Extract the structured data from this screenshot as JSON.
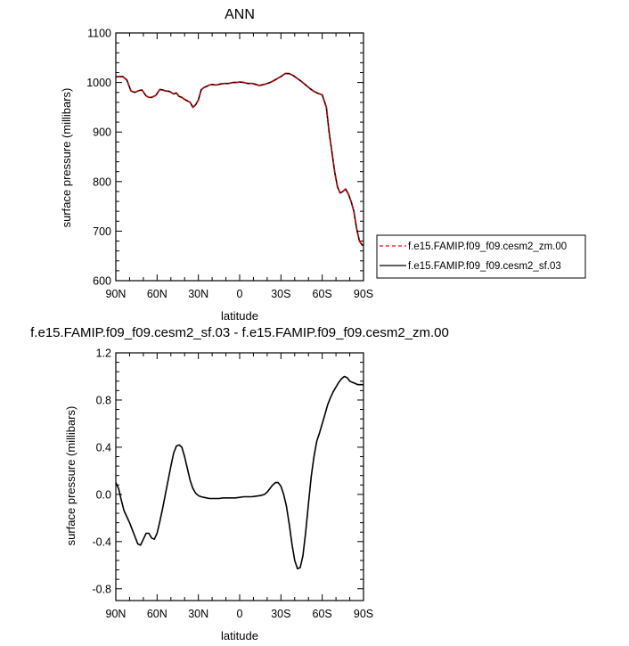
{
  "chart_data": [
    {
      "type": "line",
      "title": "ANN",
      "xlabel": "latitude",
      "ylabel": "surface pressure (millibars)",
      "xlim": [
        -90,
        90
      ],
      "ylim": [
        600,
        1100
      ],
      "x_ticks": [
        -90,
        -60,
        -30,
        0,
        30,
        60,
        90
      ],
      "x_tick_labels": [
        "90N",
        "60N",
        "30N",
        "0",
        "30S",
        "60S",
        "90S"
      ],
      "y_ticks": [
        600,
        700,
        800,
        900,
        1000,
        1100
      ],
      "y_tick_labels": [
        "600",
        "700",
        "800",
        "900",
        "1000",
        "1100"
      ],
      "grid": false,
      "legend_position": "right",
      "legend": [
        {
          "label": "f.e15.FAMIP.f09_f09.cesm2_zm.00",
          "color": "#ff0000",
          "dash": "dashed"
        },
        {
          "label": "f.e15.FAMIP.f09_f09.cesm2_sf.03",
          "color": "#000000",
          "dash": "solid"
        }
      ],
      "series": [
        {
          "name": "f.e15.FAMIP.f09_f09.cesm2_zm.00",
          "color": "#cc0000",
          "x": [
            -90,
            -85,
            -82,
            -79,
            -76,
            -74,
            -71,
            -68,
            -66,
            -64,
            -61,
            -58,
            -56,
            -54,
            -51,
            -48,
            -46,
            -44,
            -42,
            -40,
            -38,
            -36,
            -34,
            -32,
            -30,
            -28,
            -26,
            -24,
            -22,
            -20,
            -17,
            -14,
            -11,
            -8,
            -5,
            -2,
            0,
            3,
            6,
            9,
            12,
            14,
            16,
            19,
            22,
            25,
            28,
            30,
            33,
            36,
            39,
            42,
            45,
            48,
            51,
            54,
            57,
            60,
            63,
            65,
            67,
            69,
            71,
            73,
            75,
            77,
            79,
            81,
            83,
            85,
            87,
            89,
            90
          ],
          "y": [
            1012,
            1012,
            1005,
            983,
            980,
            983,
            985,
            973,
            970,
            970,
            974,
            986,
            985,
            983,
            982,
            977,
            979,
            972,
            970,
            966,
            963,
            960,
            950,
            955,
            965,
            985,
            990,
            992,
            995,
            996,
            995,
            997,
            998,
            998,
            1000,
            1000,
            1001,
            1000,
            998,
            998,
            996,
            994,
            995,
            997,
            1000,
            1004,
            1009,
            1012,
            1018,
            1018,
            1014,
            1008,
            1002,
            995,
            988,
            982,
            978,
            975,
            950,
            900,
            860,
            820,
            790,
            777,
            780,
            785,
            775,
            760,
            740,
            705,
            680,
            672,
            672
          ]
        }
      ]
    },
    {
      "type": "line",
      "title": "f.e15.FAMIP.f09_f09.cesm2_sf.03 - f.e15.FAMIP.f09_f09.cesm2_zm.00",
      "xlabel": "latitude",
      "ylabel": "surface pressure (millibars)",
      "xlim": [
        -90,
        90
      ],
      "ylim": [
        -0.9,
        1.2
      ],
      "x_ticks": [
        -90,
        -60,
        -30,
        0,
        30,
        60,
        90
      ],
      "x_tick_labels": [
        "90N",
        "60N",
        "30N",
        "0",
        "30S",
        "60S",
        "90S"
      ],
      "y_ticks": [
        -0.8,
        -0.4,
        0.0,
        0.4,
        0.8,
        1.2
      ],
      "y_tick_labels": [
        "-0.8",
        "-0.4",
        "0.0",
        "0.4",
        "0.8",
        "1.2"
      ],
      "grid": false,
      "series": [
        {
          "color": "#000000",
          "x": [
            -90,
            -88,
            -86,
            -84,
            -82,
            -80,
            -78,
            -76,
            -74,
            -72,
            -70,
            -68,
            -66,
            -64,
            -62,
            -60,
            -58,
            -56,
            -54,
            -52,
            -50,
            -48,
            -46,
            -44,
            -42,
            -40,
            -38,
            -36,
            -34,
            -32,
            -30,
            -28,
            -26,
            -24,
            -22,
            -20,
            -18,
            -15,
            -12,
            -9,
            -6,
            -3,
            0,
            3,
            6,
            9,
            12,
            15,
            18,
            20,
            22,
            24,
            26,
            28,
            30,
            32,
            34,
            36,
            38,
            40,
            42,
            44,
            46,
            48,
            50,
            52,
            54,
            56,
            58,
            60,
            62,
            64,
            66,
            68,
            70,
            72,
            74,
            76,
            78,
            80,
            82,
            84,
            86,
            88,
            90
          ],
          "y": [
            0.1,
            0.05,
            -0.05,
            -0.14,
            -0.19,
            -0.24,
            -0.3,
            -0.36,
            -0.42,
            -0.43,
            -0.38,
            -0.33,
            -0.33,
            -0.37,
            -0.38,
            -0.33,
            -0.23,
            -0.12,
            0.0,
            0.12,
            0.24,
            0.35,
            0.41,
            0.42,
            0.4,
            0.32,
            0.22,
            0.12,
            0.05,
            0.01,
            -0.01,
            -0.02,
            -0.025,
            -0.03,
            -0.035,
            -0.035,
            -0.035,
            -0.035,
            -0.03,
            -0.03,
            -0.03,
            -0.03,
            -0.025,
            -0.02,
            -0.02,
            -0.02,
            -0.015,
            -0.01,
            0.0,
            0.02,
            0.05,
            0.08,
            0.1,
            0.1,
            0.07,
            0.0,
            -0.1,
            -0.25,
            -0.42,
            -0.56,
            -0.63,
            -0.62,
            -0.52,
            -0.32,
            -0.08,
            0.15,
            0.32,
            0.45,
            0.52,
            0.6,
            0.68,
            0.76,
            0.82,
            0.87,
            0.91,
            0.95,
            0.98,
            1.0,
            0.99,
            0.96,
            0.95,
            0.94,
            0.93,
            0.93,
            0.93
          ]
        }
      ]
    }
  ]
}
